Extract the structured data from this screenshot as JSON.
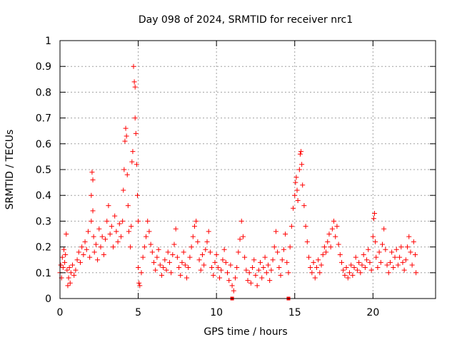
{
  "chart_data": {
    "type": "scatter",
    "title": "Day 098 of 2024, SRMTID for receiver nrc1",
    "xlabel": "GPS time / hours",
    "ylabel": "SRMTID / TECUs",
    "xlim": [
      0,
      24
    ],
    "ylim": [
      0,
      1
    ],
    "xticks": [
      "0",
      "5",
      "10",
      "15",
      "20"
    ],
    "xtick_values": [
      0,
      5,
      10,
      15,
      20
    ],
    "yticks": [
      "0",
      "0.1",
      "0.2",
      "0.3",
      "0.4",
      "0.5",
      "0.6",
      "0.7",
      "0.8",
      "0.9",
      "1"
    ],
    "ytick_values": [
      0,
      0.1,
      0.2,
      0.3,
      0.4,
      0.5,
      0.6,
      0.7,
      0.8,
      0.9,
      1.0
    ],
    "grid": true,
    "marker": "+",
    "color": "#ff0000",
    "series": [
      {
        "name": "nrc1",
        "points": [
          [
            0.0,
            0.1
          ],
          [
            0.05,
            0.13
          ],
          [
            0.1,
            0.08
          ],
          [
            0.15,
            0.16
          ],
          [
            0.2,
            0.12
          ],
          [
            0.25,
            0.19
          ],
          [
            0.3,
            0.14
          ],
          [
            0.35,
            0.17
          ],
          [
            0.4,
            0.25
          ],
          [
            0.45,
            0.11
          ],
          [
            0.5,
            0.05
          ],
          [
            0.55,
            0.08
          ],
          [
            0.6,
            0.12
          ],
          [
            0.65,
            0.06
          ],
          [
            0.7,
            0.1
          ],
          [
            0.8,
            0.13
          ],
          [
            0.9,
            0.09
          ],
          [
            1.0,
            0.11
          ],
          [
            1.1,
            0.15
          ],
          [
            1.2,
            0.18
          ],
          [
            1.3,
            0.14
          ],
          [
            1.4,
            0.2
          ],
          [
            1.5,
            0.17
          ],
          [
            1.6,
            0.22
          ],
          [
            1.7,
            0.19
          ],
          [
            1.8,
            0.26
          ],
          [
            1.9,
            0.16
          ],
          [
            2.0,
            0.3
          ],
          [
            2.0,
            0.4
          ],
          [
            2.05,
            0.49
          ],
          [
            2.1,
            0.46
          ],
          [
            2.1,
            0.34
          ],
          [
            2.15,
            0.24
          ],
          [
            2.2,
            0.18
          ],
          [
            2.3,
            0.21
          ],
          [
            2.4,
            0.15
          ],
          [
            2.5,
            0.27
          ],
          [
            2.6,
            0.2
          ],
          [
            2.7,
            0.24
          ],
          [
            2.8,
            0.17
          ],
          [
            2.9,
            0.23
          ],
          [
            3.0,
            0.3
          ],
          [
            3.1,
            0.36
          ],
          [
            3.2,
            0.25
          ],
          [
            3.3,
            0.28
          ],
          [
            3.4,
            0.2
          ],
          [
            3.5,
            0.32
          ],
          [
            3.6,
            0.26
          ],
          [
            3.7,
            0.22
          ],
          [
            3.8,
            0.29
          ],
          [
            3.9,
            0.24
          ],
          [
            4.0,
            0.3
          ],
          [
            4.05,
            0.42
          ],
          [
            4.1,
            0.5
          ],
          [
            4.15,
            0.61
          ],
          [
            4.2,
            0.66
          ],
          [
            4.25,
            0.63
          ],
          [
            4.3,
            0.48
          ],
          [
            4.35,
            0.36
          ],
          [
            4.4,
            0.26
          ],
          [
            4.5,
            0.2
          ],
          [
            4.55,
            0.28
          ],
          [
            4.6,
            0.53
          ],
          [
            4.65,
            0.57
          ],
          [
            4.7,
            0.9
          ],
          [
            4.75,
            0.84
          ],
          [
            4.8,
            0.82
          ],
          [
            4.8,
            0.7
          ],
          [
            4.85,
            0.64
          ],
          [
            4.9,
            0.52
          ],
          [
            4.95,
            0.4
          ],
          [
            5.0,
            0.3
          ],
          [
            5.0,
            0.12
          ],
          [
            5.05,
            0.06
          ],
          [
            5.1,
            0.05
          ],
          [
            5.2,
            0.1
          ],
          [
            5.3,
            0.16
          ],
          [
            5.4,
            0.2
          ],
          [
            5.5,
            0.24
          ],
          [
            5.6,
            0.3
          ],
          [
            5.7,
            0.26
          ],
          [
            5.8,
            0.21
          ],
          [
            5.9,
            0.18
          ],
          [
            6.0,
            0.14
          ],
          [
            6.1,
            0.11
          ],
          [
            6.2,
            0.16
          ],
          [
            6.3,
            0.19
          ],
          [
            6.4,
            0.13
          ],
          [
            6.5,
            0.09
          ],
          [
            6.6,
            0.12
          ],
          [
            6.7,
            0.15
          ],
          [
            6.8,
            0.11
          ],
          [
            6.9,
            0.18
          ],
          [
            7.0,
            0.14
          ],
          [
            7.1,
            0.1
          ],
          [
            7.2,
            0.17
          ],
          [
            7.3,
            0.21
          ],
          [
            7.4,
            0.27
          ],
          [
            7.5,
            0.16
          ],
          [
            7.6,
            0.12
          ],
          [
            7.7,
            0.09
          ],
          [
            7.8,
            0.14
          ],
          [
            7.9,
            0.18
          ],
          [
            8.0,
            0.13
          ],
          [
            8.1,
            0.08
          ],
          [
            8.2,
            0.12
          ],
          [
            8.3,
            0.16
          ],
          [
            8.4,
            0.2
          ],
          [
            8.5,
            0.24
          ],
          [
            8.6,
            0.28
          ],
          [
            8.7,
            0.3
          ],
          [
            8.8,
            0.22
          ],
          [
            8.9,
            0.15
          ],
          [
            9.0,
            0.11
          ],
          [
            9.1,
            0.17
          ],
          [
            9.2,
            0.13
          ],
          [
            9.3,
            0.19
          ],
          [
            9.4,
            0.22
          ],
          [
            9.5,
            0.26
          ],
          [
            9.6,
            0.18
          ],
          [
            9.7,
            0.12
          ],
          [
            9.8,
            0.09
          ],
          [
            9.9,
            0.14
          ],
          [
            10.0,
            0.17
          ],
          [
            10.1,
            0.12
          ],
          [
            10.2,
            0.08
          ],
          [
            10.3,
            0.11
          ],
          [
            10.4,
            0.15
          ],
          [
            10.5,
            0.19
          ],
          [
            10.6,
            0.14
          ],
          [
            10.7,
            0.1
          ],
          [
            10.8,
            0.07
          ],
          [
            10.9,
            0.13
          ],
          [
            11.0,
            0.05
          ],
          [
            11.1,
            0.03
          ],
          [
            11.2,
            0.08
          ],
          [
            11.3,
            0.12
          ],
          [
            11.4,
            0.18
          ],
          [
            11.5,
            0.23
          ],
          [
            11.6,
            0.3
          ],
          [
            11.7,
            0.24
          ],
          [
            11.8,
            0.16
          ],
          [
            11.9,
            0.11
          ],
          [
            12.0,
            0.07
          ],
          [
            12.1,
            0.1
          ],
          [
            12.2,
            0.06
          ],
          [
            12.3,
            0.12
          ],
          [
            12.4,
            0.15
          ],
          [
            12.5,
            0.09
          ],
          [
            12.6,
            0.05
          ],
          [
            12.7,
            0.11
          ],
          [
            12.8,
            0.14
          ],
          [
            12.9,
            0.08
          ],
          [
            13.0,
            0.12
          ],
          [
            13.1,
            0.16
          ],
          [
            13.2,
            0.1
          ],
          [
            13.3,
            0.13
          ],
          [
            13.4,
            0.07
          ],
          [
            13.5,
            0.11
          ],
          [
            13.6,
            0.15
          ],
          [
            13.7,
            0.2
          ],
          [
            13.8,
            0.26
          ],
          [
            13.9,
            0.18
          ],
          [
            14.0,
            0.12
          ],
          [
            14.1,
            0.09
          ],
          [
            14.2,
            0.15
          ],
          [
            14.3,
            0.19
          ],
          [
            14.4,
            0.25
          ],
          [
            14.5,
            0.14
          ],
          [
            14.6,
            0.1
          ],
          [
            14.7,
            0.2
          ],
          [
            14.8,
            0.28
          ],
          [
            14.9,
            0.35
          ],
          [
            15.0,
            0.4
          ],
          [
            15.05,
            0.45
          ],
          [
            15.1,
            0.47
          ],
          [
            15.15,
            0.42
          ],
          [
            15.2,
            0.38
          ],
          [
            15.3,
            0.5
          ],
          [
            15.35,
            0.56
          ],
          [
            15.4,
            0.57
          ],
          [
            15.45,
            0.52
          ],
          [
            15.5,
            0.44
          ],
          [
            15.6,
            0.36
          ],
          [
            15.7,
            0.28
          ],
          [
            15.8,
            0.22
          ],
          [
            15.9,
            0.16
          ],
          [
            16.0,
            0.12
          ],
          [
            16.1,
            0.1
          ],
          [
            16.2,
            0.14
          ],
          [
            16.3,
            0.08
          ],
          [
            16.4,
            0.12
          ],
          [
            16.5,
            0.15
          ],
          [
            16.6,
            0.1
          ],
          [
            16.7,
            0.13
          ],
          [
            16.8,
            0.17
          ],
          [
            16.9,
            0.2
          ],
          [
            17.0,
            0.18
          ],
          [
            17.1,
            0.22
          ],
          [
            17.2,
            0.25
          ],
          [
            17.3,
            0.2
          ],
          [
            17.4,
            0.27
          ],
          [
            17.5,
            0.3
          ],
          [
            17.6,
            0.24
          ],
          [
            17.7,
            0.28
          ],
          [
            17.8,
            0.21
          ],
          [
            17.9,
            0.17
          ],
          [
            18.0,
            0.14
          ],
          [
            18.1,
            0.11
          ],
          [
            18.2,
            0.09
          ],
          [
            18.3,
            0.12
          ],
          [
            18.4,
            0.08
          ],
          [
            18.5,
            0.1
          ],
          [
            18.6,
            0.13
          ],
          [
            18.7,
            0.09
          ],
          [
            18.8,
            0.12
          ],
          [
            18.9,
            0.16
          ],
          [
            19.0,
            0.11
          ],
          [
            19.1,
            0.14
          ],
          [
            19.2,
            0.1
          ],
          [
            19.3,
            0.13
          ],
          [
            19.4,
            0.17
          ],
          [
            19.5,
            0.12
          ],
          [
            19.6,
            0.15
          ],
          [
            19.7,
            0.19
          ],
          [
            19.8,
            0.14
          ],
          [
            19.9,
            0.11
          ],
          [
            20.0,
            0.24
          ],
          [
            20.05,
            0.31
          ],
          [
            20.1,
            0.33
          ],
          [
            20.15,
            0.22
          ],
          [
            20.2,
            0.16
          ],
          [
            20.3,
            0.12
          ],
          [
            20.4,
            0.18
          ],
          [
            20.5,
            0.14
          ],
          [
            20.6,
            0.21
          ],
          [
            20.7,
            0.27
          ],
          [
            20.8,
            0.19
          ],
          [
            20.9,
            0.13
          ],
          [
            21.0,
            0.1
          ],
          [
            21.1,
            0.14
          ],
          [
            21.2,
            0.18
          ],
          [
            21.3,
            0.12
          ],
          [
            21.4,
            0.16
          ],
          [
            21.5,
            0.19
          ],
          [
            21.6,
            0.13
          ],
          [
            21.7,
            0.16
          ],
          [
            21.8,
            0.2
          ],
          [
            21.9,
            0.14
          ],
          [
            22.0,
            0.11
          ],
          [
            22.1,
            0.15
          ],
          [
            22.2,
            0.2
          ],
          [
            22.3,
            0.24
          ],
          [
            22.4,
            0.18
          ],
          [
            22.5,
            0.13
          ],
          [
            22.6,
            0.22
          ],
          [
            22.7,
            0.17
          ],
          [
            22.75,
            0.1
          ]
        ]
      }
    ],
    "axis_markers": [
      {
        "x": 11.0,
        "y": 0
      },
      {
        "x": 14.6,
        "y": 0
      }
    ]
  }
}
